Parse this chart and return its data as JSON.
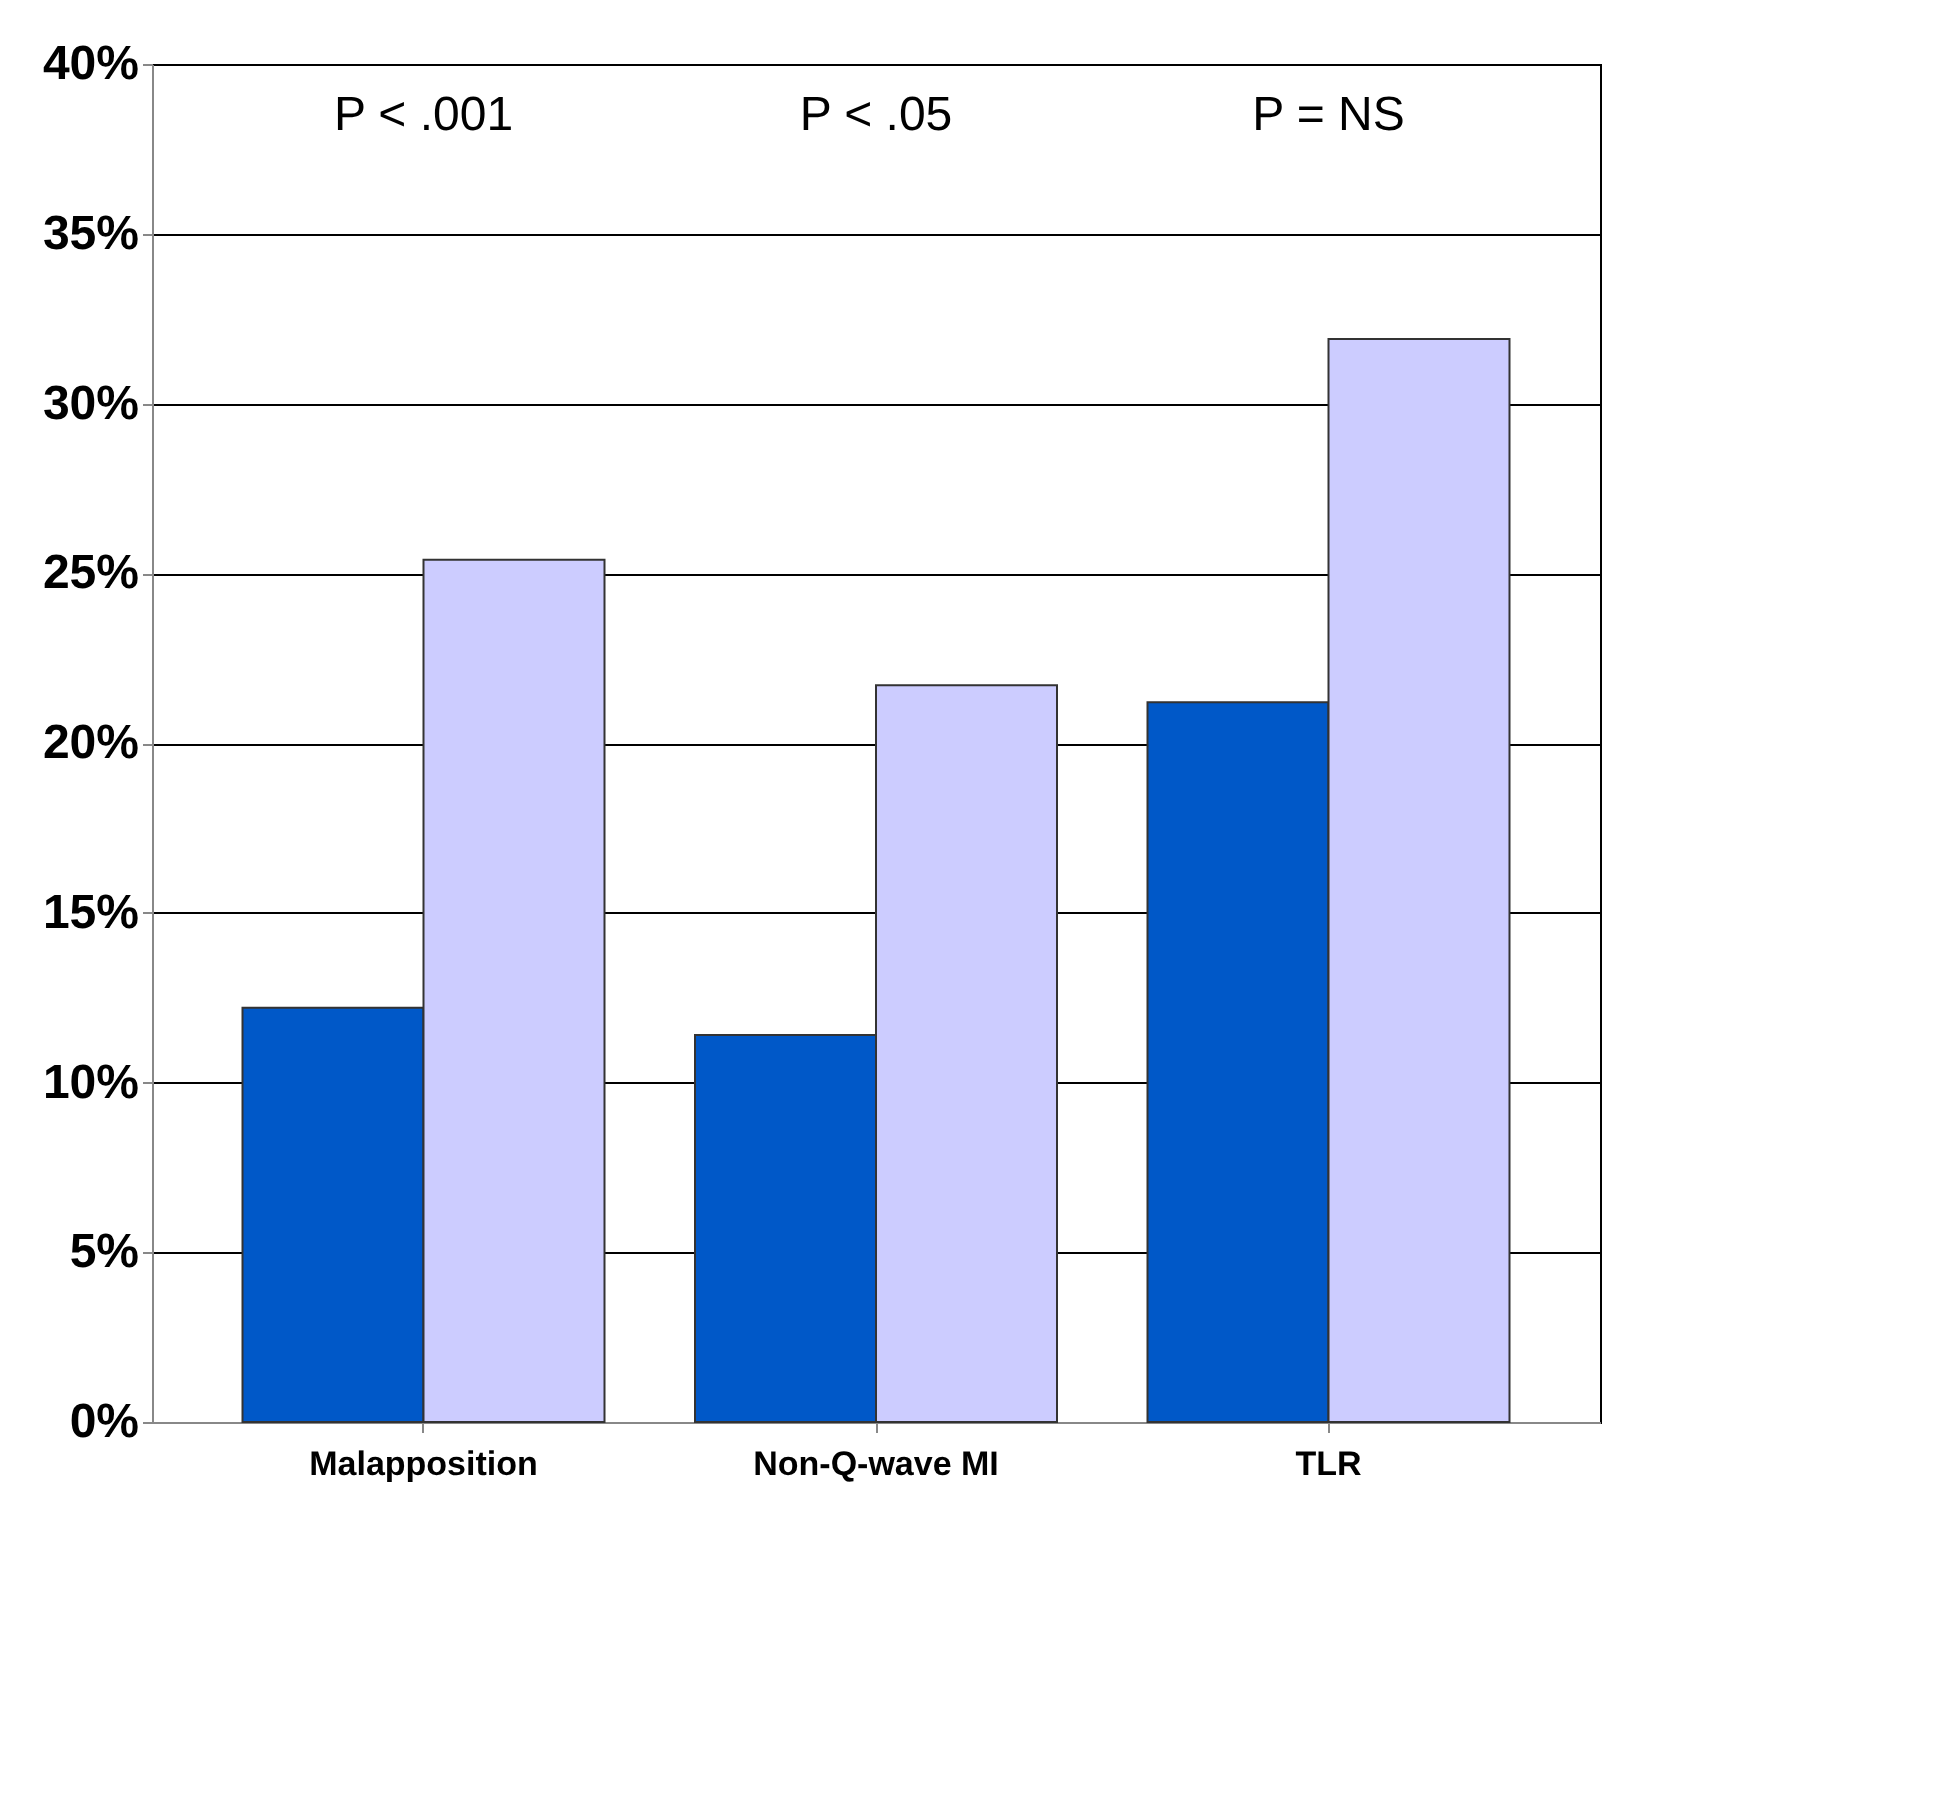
{
  "chart_data": {
    "type": "bar",
    "categories": [
      "Malapposition",
      "Non-Q-wave MI",
      "TLR"
    ],
    "series": [
      {
        "color": "#0058c8",
        "values": [
          12.2,
          11.4,
          21.2
        ]
      },
      {
        "color": "#ccccff",
        "values": [
          25.4,
          21.7,
          31.9
        ]
      }
    ],
    "ylim": [
      0,
      40
    ],
    "yticks": [
      {
        "value": 0,
        "label": "0%"
      },
      {
        "value": 5,
        "label": "5%"
      },
      {
        "value": 10,
        "label": "10%"
      },
      {
        "value": 15,
        "label": "15%"
      },
      {
        "value": 20,
        "label": "20%"
      },
      {
        "value": 25,
        "label": "25%"
      },
      {
        "value": 30,
        "label": "30%"
      },
      {
        "value": 35,
        "label": "35%"
      },
      {
        "value": 40,
        "label": "40%"
      }
    ],
    "grid": "y",
    "legend": false,
    "annotations": [
      "P < .001",
      "P < .05",
      "P = NS"
    ]
  }
}
